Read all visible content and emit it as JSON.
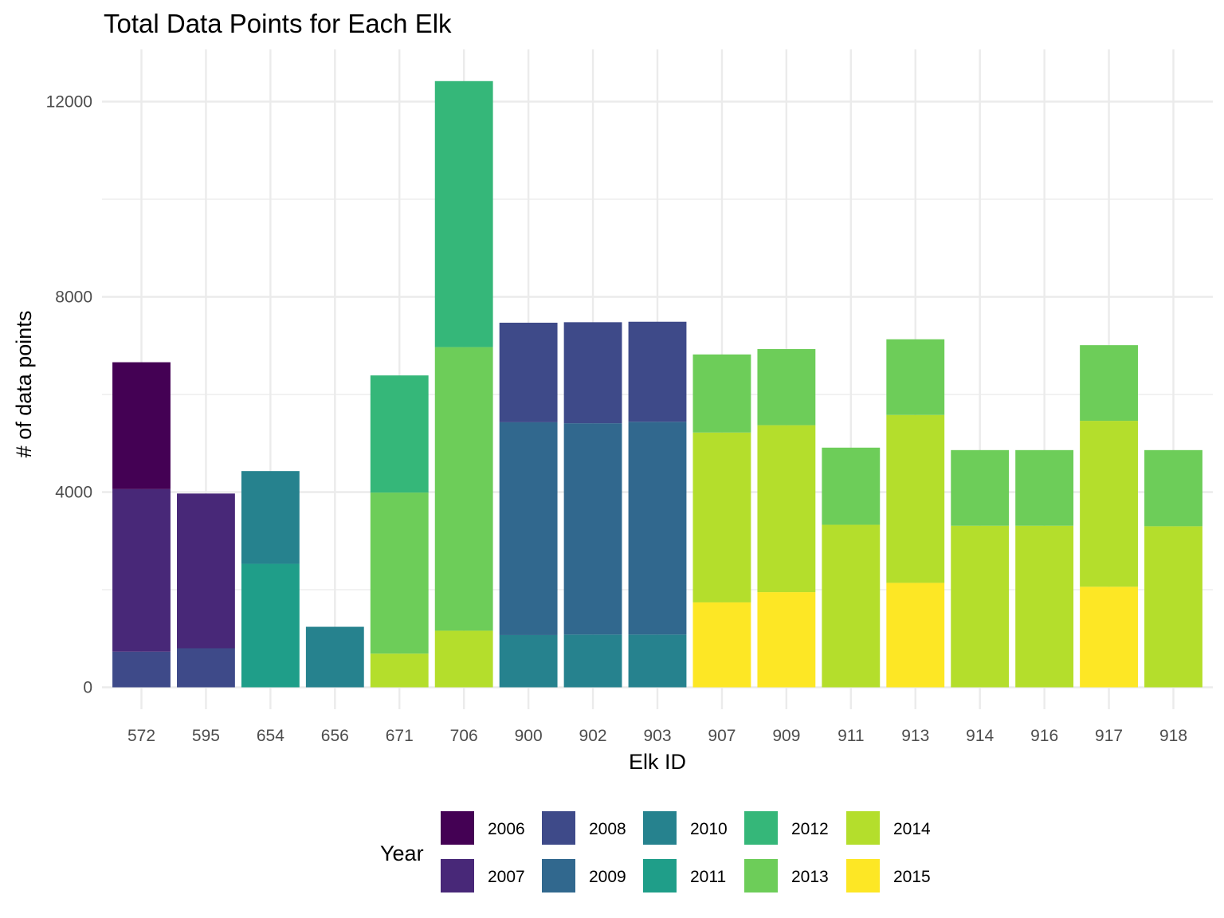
{
  "chart_data": {
    "type": "bar",
    "stacked": true,
    "title": "Total Data Points for Each Elk",
    "xlabel": "Elk ID",
    "ylabel": "# of data points",
    "ylim": [
      -450,
      13000
    ],
    "yticks": [
      0,
      4000,
      8000,
      12000
    ],
    "grid": true,
    "legend": {
      "title": "Year",
      "position": "bottom"
    },
    "categories": [
      "572",
      "595",
      "654",
      "656",
      "671",
      "706",
      "900",
      "902",
      "903",
      "907",
      "909",
      "911",
      "913",
      "914",
      "916",
      "917",
      "918"
    ],
    "series": [
      {
        "name": "2006",
        "color": "#440154",
        "values": [
          2600,
          0,
          0,
          0,
          0,
          0,
          0,
          0,
          0,
          0,
          0,
          0,
          0,
          0,
          0,
          0,
          0
        ]
      },
      {
        "name": "2007",
        "color": "#482878",
        "values": [
          3330,
          3170,
          0,
          0,
          0,
          0,
          0,
          0,
          0,
          0,
          0,
          0,
          0,
          0,
          0,
          0,
          0
        ]
      },
      {
        "name": "2008",
        "color": "#3E4A89",
        "values": [
          730,
          800,
          0,
          0,
          0,
          0,
          2040,
          2070,
          2050,
          0,
          0,
          0,
          0,
          0,
          0,
          0,
          0
        ]
      },
      {
        "name": "2009",
        "color": "#31688E",
        "values": [
          0,
          0,
          0,
          0,
          0,
          0,
          4360,
          4330,
          4360,
          0,
          0,
          0,
          0,
          0,
          0,
          0,
          0
        ]
      },
      {
        "name": "2010",
        "color": "#26828E",
        "values": [
          0,
          0,
          1900,
          1240,
          0,
          0,
          1070,
          1080,
          1080,
          0,
          0,
          0,
          0,
          0,
          0,
          0,
          0
        ]
      },
      {
        "name": "2011",
        "color": "#1F9E89",
        "values": [
          0,
          0,
          2530,
          0,
          0,
          0,
          0,
          0,
          0,
          0,
          0,
          0,
          0,
          0,
          0,
          0,
          0
        ]
      },
      {
        "name": "2012",
        "color": "#35B779",
        "values": [
          0,
          0,
          0,
          0,
          2400,
          5450,
          0,
          0,
          0,
          0,
          0,
          0,
          0,
          0,
          0,
          0,
          0
        ]
      },
      {
        "name": "2013",
        "color": "#6DCD59",
        "values": [
          0,
          0,
          0,
          0,
          3300,
          5810,
          0,
          0,
          0,
          1600,
          1560,
          1580,
          1550,
          1550,
          1550,
          1550,
          1560
        ]
      },
      {
        "name": "2014",
        "color": "#B4DE2C",
        "values": [
          0,
          0,
          0,
          0,
          690,
          1160,
          0,
          0,
          0,
          3480,
          3420,
          3330,
          3440,
          3310,
          3310,
          3400,
          3300
        ]
      },
      {
        "name": "2015",
        "color": "#FDE725",
        "values": [
          0,
          0,
          0,
          0,
          0,
          0,
          0,
          0,
          0,
          1740,
          1950,
          0,
          2140,
          0,
          0,
          2060,
          0
        ]
      }
    ]
  }
}
